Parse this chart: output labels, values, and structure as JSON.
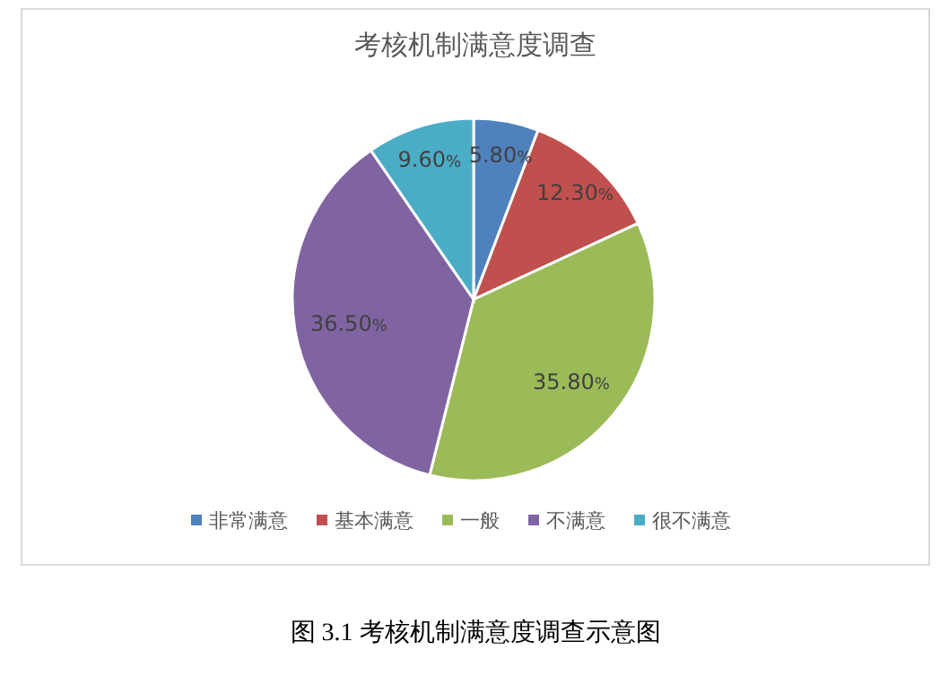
{
  "chart_data": {
    "type": "pie",
    "title": "考核机制满意度调查",
    "categories": [
      "非常满意",
      "基本满意",
      "一般",
      "不满意",
      "很不满意"
    ],
    "values": [
      5.8,
      12.3,
      35.8,
      36.5,
      9.6
    ],
    "colors": [
      "#4f81bd",
      "#c0504d",
      "#9bbb59",
      "#8064a2",
      "#4bacc6"
    ],
    "value_labels": [
      "5.80%",
      "12.30%",
      "35.80%",
      "36.50%",
      "9.60%"
    ],
    "legend": "bottom",
    "annotations": [
      "图 3.1  考核机制满意度调查示意图"
    ]
  }
}
